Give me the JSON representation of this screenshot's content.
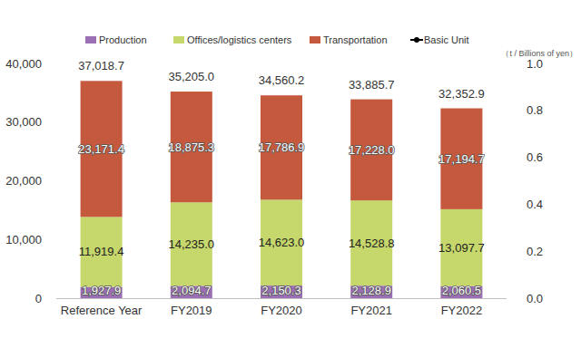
{
  "chart_data": {
    "type": "bar",
    "stacked": true,
    "data_labels": true,
    "grid": false,
    "legend": "top",
    "y2label": "（t / Billions of yen）",
    "categories": [
      "Reference Year",
      "FY2019",
      "FY2020",
      "FY2021",
      "FY2022"
    ],
    "series": [
      {
        "name": "Production",
        "color": "#9b6fb3",
        "values": [
          1927.9,
          2094.7,
          2150.3,
          2128.9,
          2060.5
        ],
        "value_labels": [
          "1,927.9",
          "2,094.7",
          "2,150.3",
          "2,128.9",
          "2,060.5"
        ]
      },
      {
        "name": "Offices/logistics centers",
        "color": "#c6d76b",
        "values": [
          11919.4,
          14235.0,
          14623.0,
          14528.8,
          13097.7
        ],
        "value_labels": [
          "11,919.4",
          "14,235.0",
          "14,623.0",
          "14,528.8",
          "13,097.7"
        ]
      },
      {
        "name": "Transportation",
        "color": "#c4593d",
        "values": [
          23171.4,
          18875.3,
          17786.9,
          17228.0,
          17194.7
        ],
        "value_labels": [
          "23,171.4",
          "18,875.3",
          "17,786.9",
          "17,228.0",
          "17,194.7"
        ]
      },
      {
        "name": "Basic Unit",
        "color": "#000000",
        "type": "line",
        "axis": "y2",
        "marker": "circle",
        "values": [
          null,
          null,
          null,
          null,
          null
        ]
      }
    ],
    "totals": [
      37018.7,
      35205.0,
      34560.2,
      33885.7,
      32352.9
    ],
    "total_labels": [
      "37,018.7",
      "35,205.0",
      "34,560.2",
      "33,885.7",
      "32,352.9"
    ],
    "ylim": [
      0,
      40000
    ],
    "yticks": [
      0,
      {
        "value": 10000,
        "label": "10,000"
      },
      {
        "value": 20000,
        "label": "20,000"
      },
      {
        "value": 30000,
        "label": "30,000"
      },
      {
        "value": 40000,
        "label": "40,000"
      }
    ],
    "y2lim": [
      0,
      1
    ],
    "y2ticks": [
      {
        "value": 0,
        "label": "0.0"
      },
      0.2,
      0.4,
      0.6,
      0.8,
      {
        "value": 1,
        "label": "1.0"
      }
    ]
  }
}
